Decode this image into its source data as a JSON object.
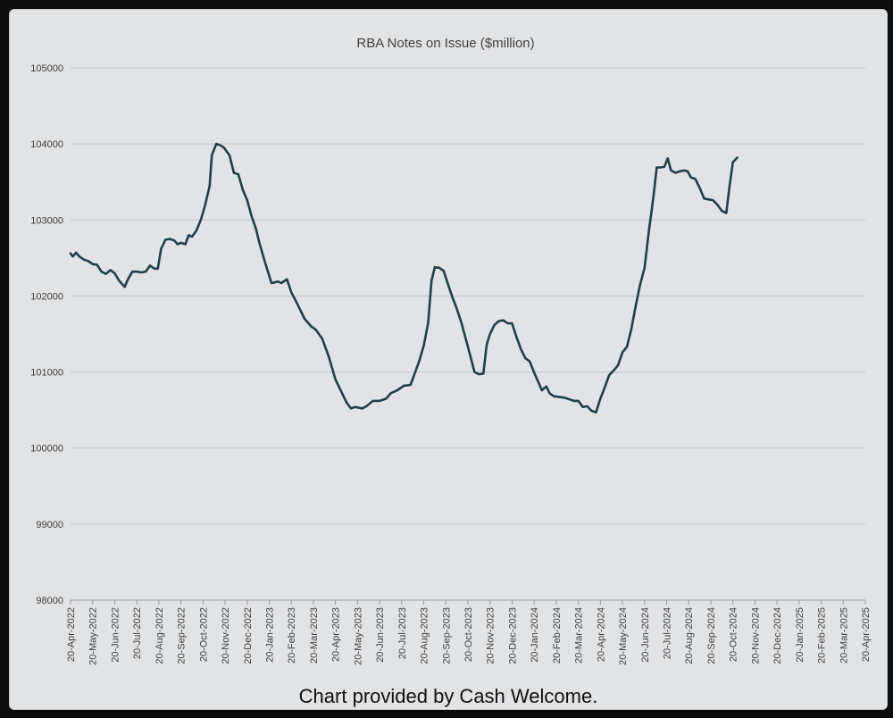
{
  "chart_data": {
    "type": "line",
    "title": "RBA Notes on Issue ($million)",
    "xlabel": "",
    "ylabel": "",
    "ylim": [
      98000,
      105000
    ],
    "yticks": [
      98000,
      99000,
      100000,
      101000,
      102000,
      103000,
      104000,
      105000
    ],
    "grid": true,
    "legend": "none",
    "colors": {
      "line": "#1f3f4a",
      "grid": "#c2c4c6",
      "axis": "#9a9c9e"
    },
    "categories": [
      "20-Apr-2022",
      "20-May-2022",
      "20-Jun-2022",
      "20-Jul-2022",
      "20-Aug-2022",
      "20-Sep-2022",
      "20-Oct-2022",
      "20-Nov-2022",
      "20-Dec-2022",
      "20-Jan-2023",
      "20-Feb-2023",
      "20-Mar-2023",
      "20-Apr-2023",
      "20-May-2023",
      "20-Jun-2023",
      "20-Jul-2023",
      "20-Aug-2023",
      "20-Sep-2023",
      "20-Oct-2023",
      "20-Nov-2023",
      "20-Dec-2023",
      "20-Jan-2024",
      "20-Feb-2024",
      "20-Mar-2024",
      "20-Apr-2024",
      "20-May-2024",
      "20-Jun-2024",
      "20-Jul-2024",
      "20-Aug-2024",
      "20-Sep-2024",
      "20-Oct-2024",
      "20-Nov-2024",
      "20-Dec-2024",
      "20-Jan-2025",
      "20-Feb-2025",
      "20-Mar-2025",
      "20-Apr-2025"
    ],
    "series": [
      {
        "points": [
          [
            0,
            102560
          ],
          [
            0.1,
            102520
          ],
          [
            0.25,
            102570
          ],
          [
            0.4,
            102520
          ],
          [
            0.6,
            102480
          ],
          [
            0.8,
            102460
          ],
          [
            1.0,
            102420
          ],
          [
            1.2,
            102410
          ],
          [
            1.4,
            102320
          ],
          [
            1.6,
            102290
          ],
          [
            1.8,
            102340
          ],
          [
            2.0,
            102300
          ],
          [
            2.2,
            102200
          ],
          [
            2.45,
            102120
          ],
          [
            2.6,
            102220
          ],
          [
            2.8,
            102320
          ],
          [
            3.0,
            102320
          ],
          [
            3.2,
            102310
          ],
          [
            3.4,
            102320
          ],
          [
            3.6,
            102400
          ],
          [
            3.8,
            102360
          ],
          [
            3.95,
            102360
          ],
          [
            4.1,
            102620
          ],
          [
            4.3,
            102740
          ],
          [
            4.5,
            102750
          ],
          [
            4.7,
            102730
          ],
          [
            4.85,
            102680
          ],
          [
            5.0,
            102700
          ],
          [
            5.2,
            102680
          ],
          [
            5.35,
            102800
          ],
          [
            5.5,
            102780
          ],
          [
            5.7,
            102860
          ],
          [
            5.9,
            103000
          ],
          [
            6.1,
            103200
          ],
          [
            6.3,
            103450
          ],
          [
            6.4,
            103850
          ],
          [
            6.6,
            104000
          ],
          [
            6.8,
            103980
          ],
          [
            6.95,
            103950
          ],
          [
            7.2,
            103850
          ],
          [
            7.4,
            103620
          ],
          [
            7.6,
            103600
          ],
          [
            7.8,
            103400
          ],
          [
            8.0,
            103260
          ],
          [
            8.2,
            103050
          ],
          [
            8.4,
            102880
          ],
          [
            8.55,
            102700
          ],
          [
            8.8,
            102450
          ],
          [
            9.1,
            102170
          ],
          [
            9.4,
            102190
          ],
          [
            9.55,
            102170
          ],
          [
            9.8,
            102220
          ],
          [
            10.0,
            102050
          ],
          [
            10.3,
            101880
          ],
          [
            10.6,
            101700
          ],
          [
            10.9,
            101600
          ],
          [
            11.1,
            101560
          ],
          [
            11.4,
            101440
          ],
          [
            11.7,
            101200
          ],
          [
            12.0,
            100900
          ],
          [
            12.3,
            100720
          ],
          [
            12.5,
            100600
          ],
          [
            12.7,
            100520
          ],
          [
            12.9,
            100540
          ],
          [
            13.2,
            100520
          ],
          [
            13.4,
            100550
          ],
          [
            13.7,
            100620
          ],
          [
            14.0,
            100620
          ],
          [
            14.3,
            100650
          ],
          [
            14.5,
            100720
          ],
          [
            14.8,
            100760
          ],
          [
            15.1,
            100820
          ],
          [
            15.4,
            100830
          ],
          [
            15.6,
            100990
          ],
          [
            15.8,
            101150
          ],
          [
            16.0,
            101350
          ],
          [
            16.2,
            101650
          ],
          [
            16.35,
            102200
          ],
          [
            16.5,
            102380
          ],
          [
            16.7,
            102370
          ],
          [
            16.9,
            102330
          ],
          [
            17.1,
            102150
          ],
          [
            17.3,
            101980
          ],
          [
            17.5,
            101830
          ],
          [
            17.7,
            101650
          ],
          [
            17.9,
            101440
          ],
          [
            18.1,
            101220
          ],
          [
            18.3,
            101000
          ],
          [
            18.5,
            100970
          ],
          [
            18.7,
            100980
          ],
          [
            18.85,
            101360
          ],
          [
            19.0,
            101500
          ],
          [
            19.2,
            101620
          ],
          [
            19.4,
            101670
          ],
          [
            19.6,
            101680
          ],
          [
            19.8,
            101640
          ],
          [
            20.0,
            101640
          ],
          [
            20.2,
            101460
          ],
          [
            20.4,
            101300
          ],
          [
            20.6,
            101180
          ],
          [
            20.8,
            101140
          ],
          [
            21.0,
            100990
          ],
          [
            21.2,
            100860
          ],
          [
            21.35,
            100760
          ],
          [
            21.55,
            100810
          ],
          [
            21.7,
            100720
          ],
          [
            21.9,
            100680
          ],
          [
            22.2,
            100670
          ],
          [
            22.4,
            100660
          ],
          [
            22.6,
            100640
          ],
          [
            22.8,
            100620
          ],
          [
            23.0,
            100620
          ],
          [
            23.2,
            100540
          ],
          [
            23.4,
            100550
          ],
          [
            23.6,
            100490
          ],
          [
            23.8,
            100470
          ],
          [
            24.0,
            100650
          ],
          [
            24.2,
            100800
          ],
          [
            24.4,
            100960
          ],
          [
            24.6,
            101020
          ],
          [
            24.8,
            101090
          ],
          [
            25.0,
            101260
          ],
          [
            25.2,
            101330
          ],
          [
            25.4,
            101560
          ],
          [
            25.6,
            101870
          ],
          [
            25.8,
            102150
          ],
          [
            26.0,
            102370
          ],
          [
            26.2,
            102860
          ],
          [
            26.4,
            103300
          ],
          [
            26.55,
            103690
          ],
          [
            26.7,
            103690
          ],
          [
            26.9,
            103700
          ],
          [
            27.05,
            103810
          ],
          [
            27.2,
            103650
          ],
          [
            27.4,
            103620
          ],
          [
            27.6,
            103640
          ],
          [
            27.8,
            103650
          ],
          [
            27.95,
            103640
          ],
          [
            28.1,
            103560
          ],
          [
            28.3,
            103540
          ],
          [
            28.5,
            103420
          ],
          [
            28.7,
            103280
          ],
          [
            28.9,
            103270
          ],
          [
            29.1,
            103260
          ],
          [
            29.3,
            103200
          ],
          [
            29.5,
            103120
          ],
          [
            29.7,
            103090
          ],
          [
            29.85,
            103450
          ],
          [
            30.0,
            103760
          ],
          [
            30.2,
            103820
          ]
        ]
      }
    ]
  },
  "caption": "Chart provided by Cash Welcome."
}
